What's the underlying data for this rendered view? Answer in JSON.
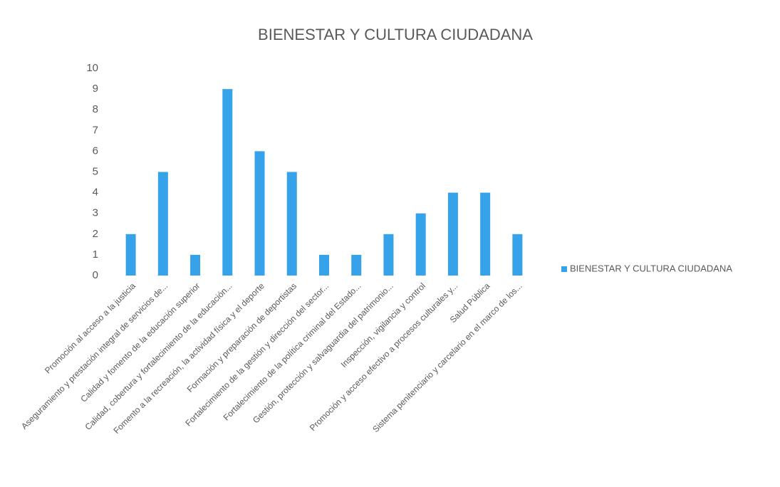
{
  "chart_data": {
    "type": "bar",
    "title": "BIENESTAR Y CULTURA CIUDADANA",
    "categories": [
      "Promoción al acceso a la justicia",
      "Aseguramiento y prestación integral de servicios de...",
      "Calidad y fomento de la educación superior",
      "Calidad, cobertura y fortalecimiento de la educación...",
      "Fomento a la recreación, la actividad física y el deporte",
      "Formación y preparación de deportistas",
      "Fortalecimiento de la gestión y dirección del sector...",
      "Fortalecimiento de la política criminal del Estado...",
      "Gestión, protección y salvaguardia del patrimonio...",
      "Inspección, vigilancia y control",
      "Promoción y acceso efectivo a procesos culturales y...",
      "Salud Pública",
      "Sistema penitenciario y carcelario en el marco de los..."
    ],
    "series": [
      {
        "name": "BIENESTAR Y CULTURA CIUDADANA",
        "color": "#36a2ea",
        "values": [
          2,
          5,
          1,
          9,
          6,
          5,
          1,
          1,
          2,
          3,
          4,
          4,
          2
        ]
      }
    ],
    "ylim": [
      0,
      10
    ],
    "yticks": [
      0,
      1,
      2,
      3,
      4,
      5,
      6,
      7,
      8,
      9,
      10
    ],
    "grid": false,
    "legend": "right"
  }
}
